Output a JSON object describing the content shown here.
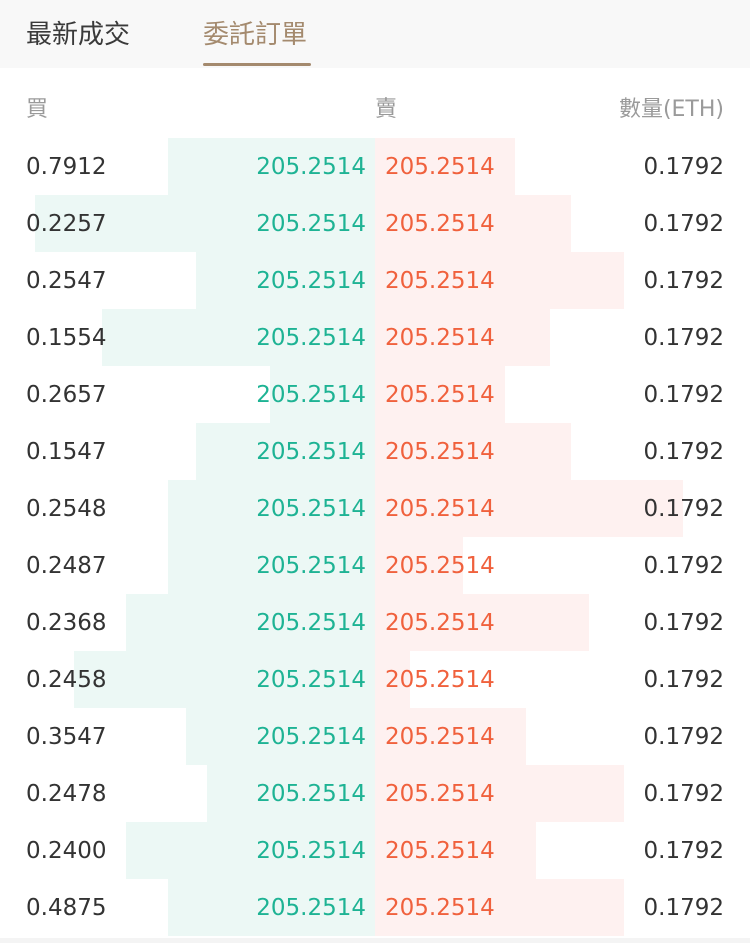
{
  "tabs": [
    {
      "label": "最新成交",
      "active": false
    },
    {
      "label": "委託訂單",
      "active": true
    }
  ],
  "colors": {
    "accent": "#a48a6e",
    "buy": "#1eb394",
    "sell": "#f0613d",
    "buy_bar": "#ecf8f5",
    "sell_bar": "#fef1f0"
  },
  "header": {
    "buy": "買",
    "sell": "賣",
    "quantity": "數量(ETH)"
  },
  "orderbook": [
    {
      "buy_qty": "0.7912",
      "buy_price": "205.2514",
      "sell_price": "205.2514",
      "sell_qty": "0.1792",
      "buy_depth": 0.59,
      "sell_depth": 0.4
    },
    {
      "buy_qty": "0.2257",
      "buy_price": "205.2514",
      "sell_price": "205.2514",
      "sell_qty": "0.1792",
      "buy_depth": 0.97,
      "sell_depth": 0.56
    },
    {
      "buy_qty": "0.2547",
      "buy_price": "205.2514",
      "sell_price": "205.2514",
      "sell_qty": "0.1792",
      "buy_depth": 0.51,
      "sell_depth": 0.71
    },
    {
      "buy_qty": "0.1554",
      "buy_price": "205.2514",
      "sell_price": "205.2514",
      "sell_qty": "0.1792",
      "buy_depth": 0.78,
      "sell_depth": 0.5
    },
    {
      "buy_qty": "0.2657",
      "buy_price": "205.2514",
      "sell_price": "205.2514",
      "sell_qty": "0.1792",
      "buy_depth": 0.3,
      "sell_depth": 0.37
    },
    {
      "buy_qty": "0.1547",
      "buy_price": "205.2514",
      "sell_price": "205.2514",
      "sell_qty": "0.1792",
      "buy_depth": 0.51,
      "sell_depth": 0.56
    },
    {
      "buy_qty": "0.2548",
      "buy_price": "205.2514",
      "sell_price": "205.2514",
      "sell_qty": "0.1792",
      "buy_depth": 0.59,
      "sell_depth": 0.88
    },
    {
      "buy_qty": "0.2487",
      "buy_price": "205.2514",
      "sell_price": "205.2514",
      "sell_qty": "0.1792",
      "buy_depth": 0.59,
      "sell_depth": 0.25
    },
    {
      "buy_qty": "0.2368",
      "buy_price": "205.2514",
      "sell_price": "205.2514",
      "sell_qty": "0.1792",
      "buy_depth": 0.71,
      "sell_depth": 0.61
    },
    {
      "buy_qty": "0.2458",
      "buy_price": "205.2514",
      "sell_price": "205.2514",
      "sell_qty": "0.1792",
      "buy_depth": 0.86,
      "sell_depth": 0.1
    },
    {
      "buy_qty": "0.3547",
      "buy_price": "205.2514",
      "sell_price": "205.2514",
      "sell_qty": "0.1792",
      "buy_depth": 0.54,
      "sell_depth": 0.43
    },
    {
      "buy_qty": "0.2478",
      "buy_price": "205.2514",
      "sell_price": "205.2514",
      "sell_qty": "0.1792",
      "buy_depth": 0.48,
      "sell_depth": 0.71
    },
    {
      "buy_qty": "0.2400",
      "buy_price": "205.2514",
      "sell_price": "205.2514",
      "sell_qty": "0.1792",
      "buy_depth": 0.71,
      "sell_depth": 0.46
    },
    {
      "buy_qty": "0.4875",
      "buy_price": "205.2514",
      "sell_price": "205.2514",
      "sell_qty": "0.1792",
      "buy_depth": 0.59,
      "sell_depth": 0.71
    }
  ]
}
